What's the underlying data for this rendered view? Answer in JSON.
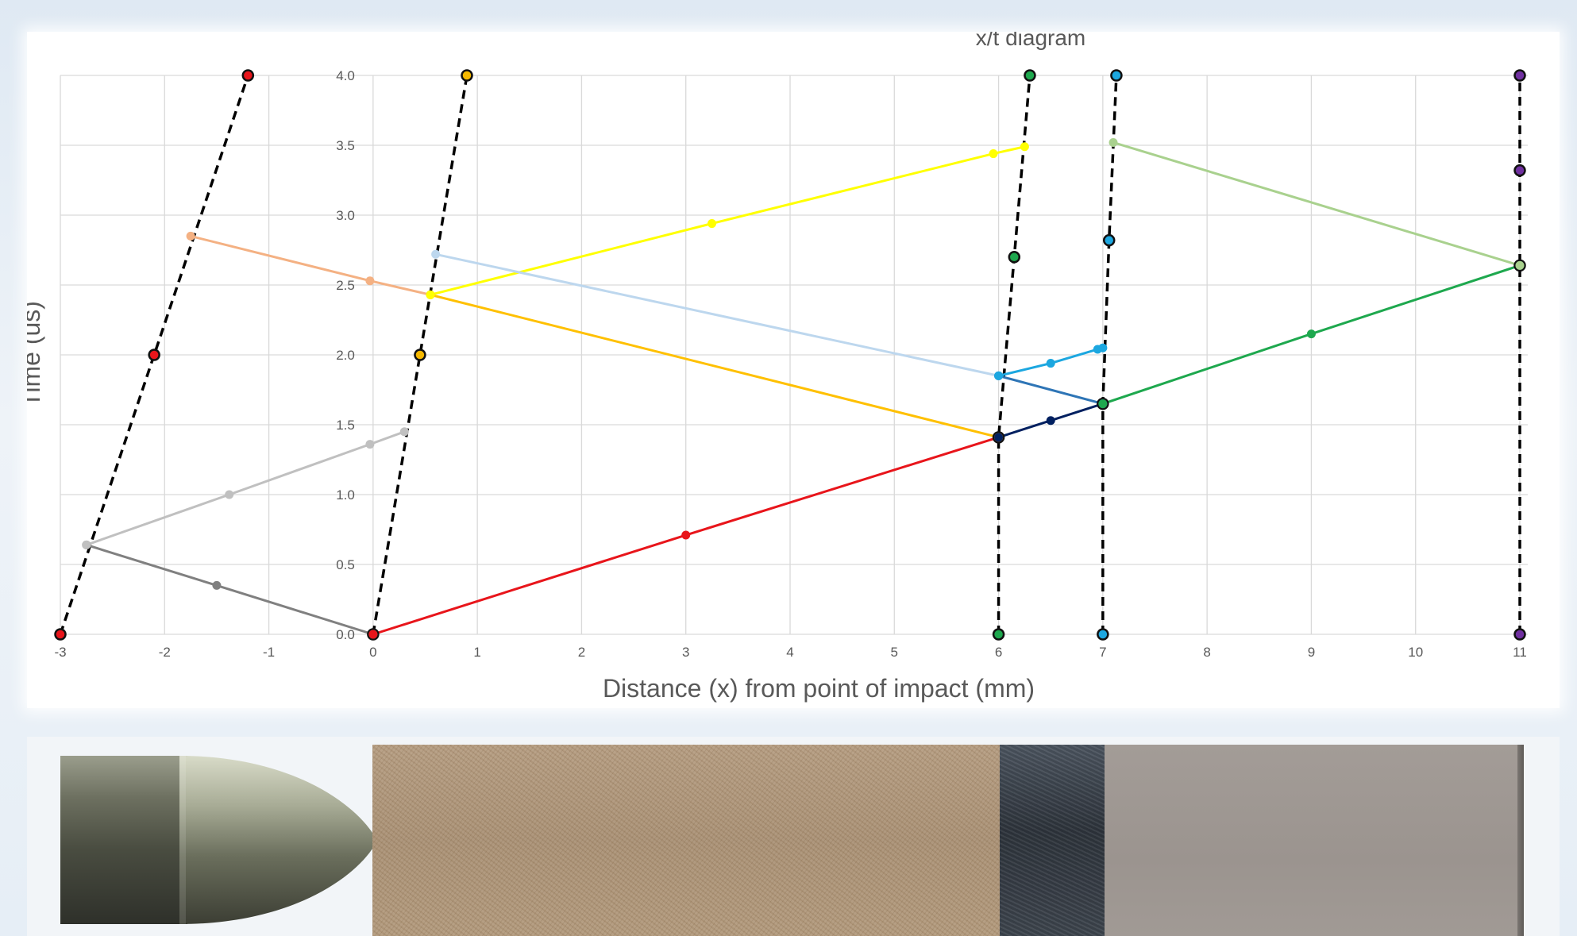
{
  "chart_data": {
    "type": "scatter",
    "title": "x/t diagram",
    "xlabel": "Distance (x) from point of impact (mm)",
    "ylabel": "Time (us)",
    "xlim": [
      -3,
      11
    ],
    "ylim": [
      0,
      4
    ],
    "x_ticks": [
      -3,
      -2,
      -1,
      0,
      1,
      2,
      3,
      4,
      5,
      6,
      7,
      8,
      9,
      10,
      11
    ],
    "y_ticks": [
      "0.0",
      "0.5",
      "1.0",
      "1.5",
      "2.0",
      "2.5",
      "3.0",
      "3.5",
      "4.0"
    ],
    "grid": true,
    "legend": "none",
    "series": [
      {
        "color": "#000000",
        "dashed": true,
        "x": [
          -3,
          -2.1,
          -1.2
        ],
        "y": [
          0,
          2.0,
          4.0
        ],
        "marker_color": "#e8151b"
      },
      {
        "color": "#000000",
        "dashed": true,
        "x": [
          0,
          0.45,
          0.9
        ],
        "y": [
          0,
          2.0,
          4.0
        ],
        "marker_color": "#f5b800"
      },
      {
        "color": "#000000",
        "dashed": true,
        "x": [
          6,
          6,
          6.15,
          6.3
        ],
        "y": [
          0,
          1.41,
          2.7,
          4.0
        ],
        "marker_color": "#1ea84e"
      },
      {
        "color": "#000000",
        "dashed": true,
        "x": [
          7,
          7,
          7.06,
          7.13
        ],
        "y": [
          0,
          1.65,
          2.82,
          4.0
        ],
        "marker_color": "#1ca7e0"
      },
      {
        "color": "#000000",
        "dashed": true,
        "x": [
          11,
          11,
          11,
          11
        ],
        "y": [
          0,
          2.64,
          3.32,
          4.0
        ],
        "marker_color": "#7030a0"
      },
      {
        "color": "#808080",
        "x": [
          0,
          -1.5,
          -2.75
        ],
        "y": [
          0,
          0.35,
          0.64
        ]
      },
      {
        "color": "#c0c0c0",
        "x": [
          -2.75,
          -1.38,
          -0.03,
          0.3
        ],
        "y": [
          0.64,
          1.0,
          1.36,
          1.45
        ]
      },
      {
        "color": "#f4b183",
        "x": [
          -1.75,
          -0.03,
          0.55
        ],
        "y": [
          2.85,
          2.53,
          2.43
        ]
      },
      {
        "color": "#e8151b",
        "x": [
          0,
          3.0,
          6.0
        ],
        "y": [
          0,
          0.71,
          1.41
        ]
      },
      {
        "color": "#ffc000",
        "x": [
          6.0,
          0.55
        ],
        "y": [
          1.41,
          2.43
        ]
      },
      {
        "color": "#ffff00",
        "x": [
          0.55,
          3.25,
          5.95,
          6.25
        ],
        "y": [
          2.43,
          2.94,
          3.44,
          3.49
        ]
      },
      {
        "color": "#bdd7ee",
        "x": [
          0.6,
          6.0
        ],
        "y": [
          2.72,
          1.85
        ]
      },
      {
        "color": "#002060",
        "x": [
          6.0,
          6.5,
          7.0
        ],
        "y": [
          1.41,
          1.53,
          1.65
        ]
      },
      {
        "color": "#2e75b6",
        "x": [
          6.0,
          7.0
        ],
        "y": [
          1.85,
          1.65
        ]
      },
      {
        "color": "#1ca7e0",
        "x": [
          6.0,
          6.5,
          6.95,
          7.0
        ],
        "y": [
          1.85,
          1.94,
          2.04,
          2.05
        ]
      },
      {
        "color": "#1ea84e",
        "x": [
          7.0,
          9.0,
          11.0
        ],
        "y": [
          1.65,
          2.15,
          2.64
        ]
      },
      {
        "color": "#a9d18e",
        "x": [
          11.0,
          7.1
        ],
        "y": [
          2.64,
          3.52
        ]
      }
    ]
  }
}
